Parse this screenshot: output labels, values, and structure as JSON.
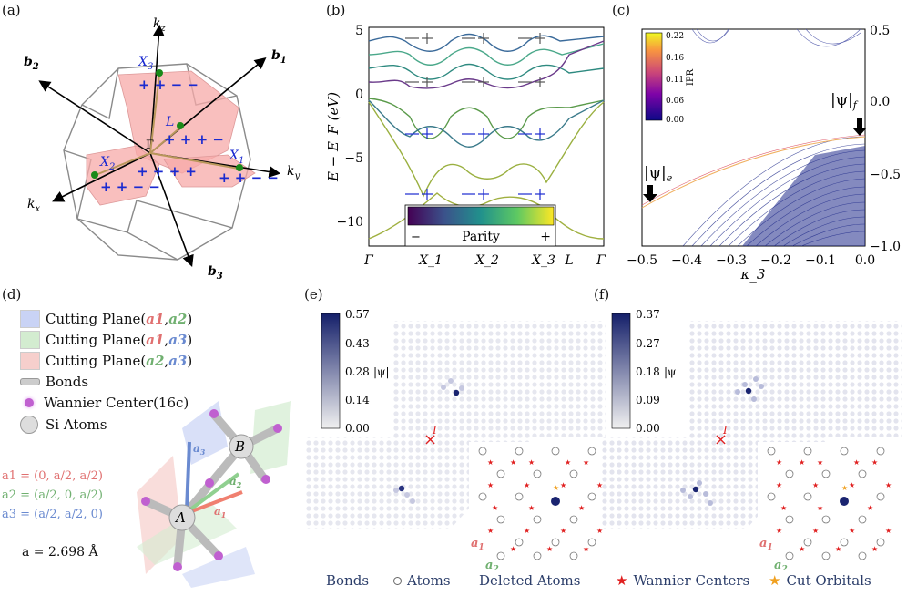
{
  "labels": {
    "a": "(a)",
    "b": "(b)",
    "c": "(c)",
    "d": "(d)",
    "e": "(e)",
    "f": "(f)"
  },
  "panel_a": {
    "axes": [
      "k_z",
      "k_x",
      "k_y",
      "b_1",
      "b_2",
      "b_3"
    ],
    "points": [
      "X_3",
      "L",
      "Γ",
      "X_1",
      "X_2"
    ],
    "parity_strings": [
      "+ + − −",
      "+ + + −",
      "+ + + +",
      "+ + − −",
      "+ + − −"
    ]
  },
  "panel_b": {
    "ylabel": "E − E_F (eV)",
    "yticks": [
      "5",
      "0",
      "−5",
      "−10"
    ],
    "xticks": [
      "Γ",
      "X_1",
      "X_2",
      "X_3",
      "L",
      "Γ"
    ],
    "colorbar_label": "Parity",
    "colorbar_min": "−",
    "colorbar_max": "+"
  },
  "panel_c": {
    "xlabel": "κ_3",
    "xticks": [
      "−0.5",
      "−0.4",
      "−0.3",
      "−0.2",
      "−0.1",
      "0.0"
    ],
    "yticks": [
      "0.5",
      "0.0",
      "−0.5",
      "−1.0"
    ],
    "colorbar_label": "IPR",
    "colorbar_ticks": [
      "0.22",
      "0.16",
      "0.11",
      "0.06",
      "0.00"
    ],
    "state_e": "|ψ|e",
    "state_f": "|ψ|f"
  },
  "panel_d": {
    "legend": [
      {
        "text": "Cutting Plane(",
        "v1": "a1",
        "v2": "a2",
        "color": "#c9d3f5"
      },
      {
        "text": "Cutting Plane(",
        "v1": "a1",
        "v2": "a3",
        "color": "#d3ecd0"
      },
      {
        "text": "Cutting Plane(",
        "v1": "a2",
        "v2": "a3",
        "color": "#f6cfcc"
      }
    ],
    "bonds": "Bonds",
    "wannier": "Wannier Center(16c)",
    "si": "Si Atoms",
    "vectors": [
      "a1 = (0, a/2, a/2)",
      "a2 = (a/2, 0, a/2)",
      "a3 = (a/2, a/2, 0)"
    ],
    "lattice": "a = 2.698 Å",
    "atoms": [
      "A",
      "B"
    ]
  },
  "panel_e": {
    "colorbar_ticks": [
      "0.57",
      "0.43",
      "0.28",
      "0.14",
      "0.00"
    ],
    "colorbar_label": "|ψ|",
    "marker": "I"
  },
  "panel_f": {
    "colorbar_ticks": [
      "0.37",
      "0.27",
      "0.18",
      "0.09",
      "0.00"
    ],
    "colorbar_label": "|ψ|",
    "marker": "I"
  },
  "bottom_legend": [
    "Bonds",
    "Atoms",
    "Deleted Atoms",
    "Wannier Centers",
    "Cut Orbitals"
  ],
  "colors": {
    "blue_band": "#1f2a8a",
    "pink": "#f7a9a8",
    "plane_red": "#f6cfcc",
    "star_red": "#e02020",
    "orange": "#f0a020"
  }
}
